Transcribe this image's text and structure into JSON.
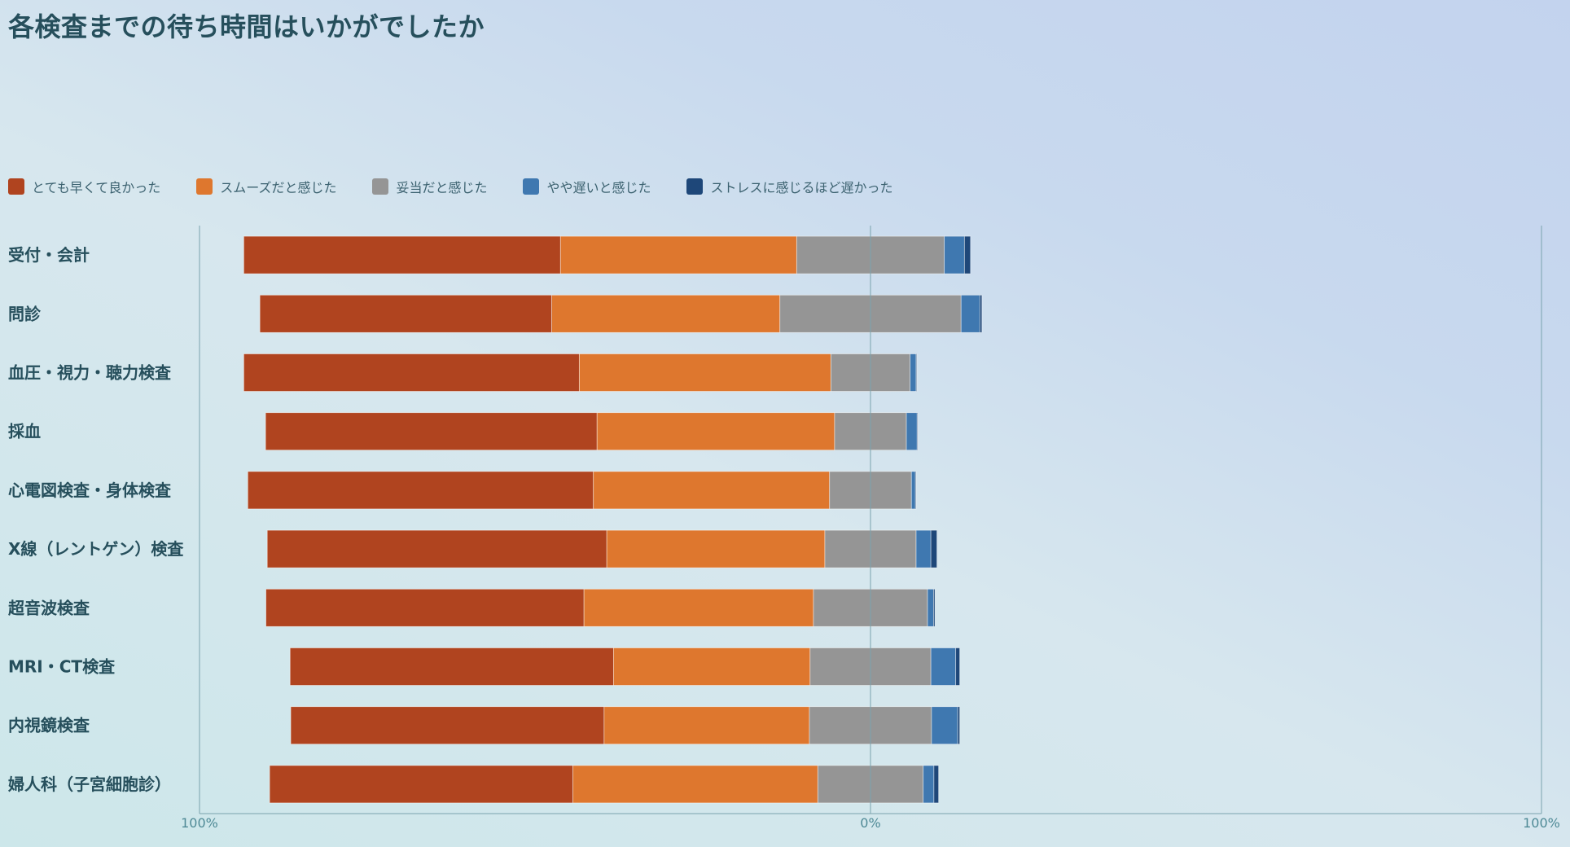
{
  "title": "各検査までの待ち時間はいかがでしたか",
  "colors": {
    "very_fast": "#b0441f",
    "smooth": "#de772e",
    "reasonable": "#959595",
    "slightly_slow": "#3f78b0",
    "stressful": "#1e4779",
    "axis": "#7aa3ae"
  },
  "chart_data": {
    "type": "bar",
    "orientation": "horizontal",
    "stacked": "diverging",
    "title": "各検査までの待ち時間はいかがでしたか",
    "xlabel": "",
    "ylabel": "",
    "xlim": [
      -100,
      100
    ],
    "x_ticks": [
      "100%",
      "0%",
      "100%"
    ],
    "legend_position": "top-left",
    "grid": false,
    "categories": [
      "受付・会計",
      "問診",
      "血圧・視力・聴力検査",
      "採血",
      "心電図検査・身体検査",
      "X線（レントゲン）検査",
      "超音波検査",
      "MRI・CT検査",
      "内視鏡検査",
      "婦人科（子宮細胞診）"
    ],
    "series": [
      {
        "name": "とても早くて良かった",
        "side": "left",
        "values": [
          47.2,
          43.5,
          50.0,
          49.4,
          51.5,
          50.6,
          47.4,
          48.2,
          46.7,
          45.2
        ]
      },
      {
        "name": "スムーズだと感じた",
        "side": "left",
        "values": [
          35.2,
          34.0,
          37.5,
          35.4,
          35.2,
          32.5,
          34.2,
          29.3,
          30.6,
          36.5
        ]
      },
      {
        "name": "妥当だと感じた",
        "side": "center",
        "values": [
          22.0,
          27.0,
          11.8,
          10.7,
          12.2,
          13.6,
          17.0,
          18.0,
          18.2,
          15.7
        ]
      },
      {
        "name": "やや遅いと感じた",
        "side": "right",
        "values": [
          3.0,
          2.8,
          0.9,
          1.6,
          0.6,
          2.2,
          0.9,
          3.7,
          3.9,
          1.6
        ]
      },
      {
        "name": "ストレスに感じるほど遅かった",
        "side": "right",
        "values": [
          0.9,
          0.3,
          0.1,
          0.1,
          0.1,
          0.9,
          0.2,
          0.6,
          0.3,
          0.7
        ]
      }
    ]
  }
}
